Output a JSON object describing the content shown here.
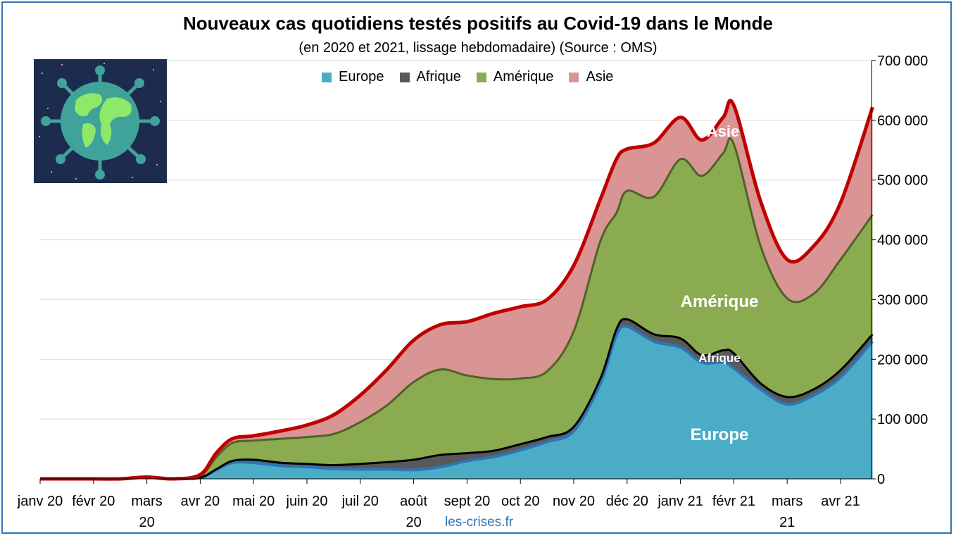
{
  "colors": {
    "europe": "#4bacc6",
    "afrique": "#595959",
    "amerique": "#8aab4f",
    "asie": "#d99594",
    "total_line": "#c00000",
    "frame": "#2e75b6"
  },
  "credit": "les-crises.fr",
  "icon": "globe-virus-icon",
  "chart_data": {
    "type": "area",
    "title": "Nouveaux cas quotidiens testés positifs au Covid-19 dans le Monde",
    "subtitle": "(en 2020 et 2021, lissage hebdomadaire) (Source : OMS)",
    "xlabel": "",
    "ylabel": "",
    "ylim": [
      0,
      700000
    ],
    "y_ticks": [
      0,
      100000,
      200000,
      300000,
      400000,
      500000,
      600000,
      700000
    ],
    "y_tick_labels": [
      "0",
      "100 000",
      "200 000",
      "300 000",
      "400 000",
      "500 000",
      "600 000",
      "700 000"
    ],
    "grid": true,
    "legend_position": "top",
    "x_tick_labels": [
      [
        "janv 20"
      ],
      [
        "févr 20"
      ],
      [
        "mars",
        "20"
      ],
      [
        "avr 20"
      ],
      [
        "mai 20"
      ],
      [
        "juin 20"
      ],
      [
        "juil 20"
      ],
      [
        "août",
        "20"
      ],
      [
        "sept 20"
      ],
      [
        "oct 20"
      ],
      [
        "nov 20"
      ],
      [
        "déc 20"
      ],
      [
        "janv 21"
      ],
      [
        "févr 21"
      ],
      [
        "mars",
        "21"
      ],
      [
        "avr 21"
      ]
    ],
    "x": [
      0,
      0.5,
      1,
      1.5,
      2,
      2.5,
      3,
      3.3,
      3.6,
      4,
      4.5,
      5,
      5.5,
      6,
      6.5,
      7,
      7.5,
      8,
      8.5,
      9,
      9.5,
      10,
      10.5,
      10.8,
      11,
      11.5,
      12,
      12.4,
      12.8,
      13,
      13.5,
      14,
      14.5,
      15,
      15.6
    ],
    "series": [
      {
        "name": "Europe",
        "values": [
          0,
          0,
          0,
          0,
          3000,
          0,
          2000,
          15000,
          27000,
          27000,
          22000,
          20000,
          17000,
          16000,
          16000,
          15000,
          20000,
          30000,
          37000,
          48000,
          62000,
          80000,
          160000,
          240000,
          255000,
          230000,
          220000,
          195000,
          195000,
          185000,
          150000,
          125000,
          140000,
          170000,
          230000
        ]
      },
      {
        "name": "Afrique",
        "values": [
          0,
          0,
          0,
          0,
          0,
          0,
          0,
          1000,
          3000,
          5000,
          5000,
          5000,
          6000,
          9000,
          12000,
          17000,
          20000,
          13000,
          10000,
          10000,
          8000,
          7000,
          8000,
          10000,
          12000,
          12000,
          15000,
          12000,
          20000,
          25000,
          10000,
          12000,
          10000,
          12000,
          12000
        ]
      },
      {
        "name": "Amérique",
        "values": [
          0,
          0,
          0,
          0,
          0,
          0,
          3000,
          20000,
          30000,
          32000,
          40000,
          45000,
          52000,
          70000,
          95000,
          130000,
          143000,
          130000,
          120000,
          110000,
          110000,
          160000,
          230000,
          195000,
          215000,
          230000,
          300000,
          300000,
          330000,
          350000,
          230000,
          165000,
          160000,
          185000,
          200000
        ]
      },
      {
        "name": "Asie",
        "values": [
          0,
          0,
          0,
          0,
          0,
          0,
          2000,
          7000,
          7000,
          8000,
          13000,
          20000,
          32000,
          45000,
          60000,
          70000,
          75000,
          90000,
          110000,
          120000,
          120000,
          110000,
          70000,
          90000,
          70000,
          90000,
          70000,
          60000,
          60000,
          65000,
          75000,
          65000,
          80000,
          95000,
          180000
        ]
      }
    ],
    "annotations": [
      "Asie",
      "Amérique",
      "Afrique",
      "Europe"
    ]
  }
}
